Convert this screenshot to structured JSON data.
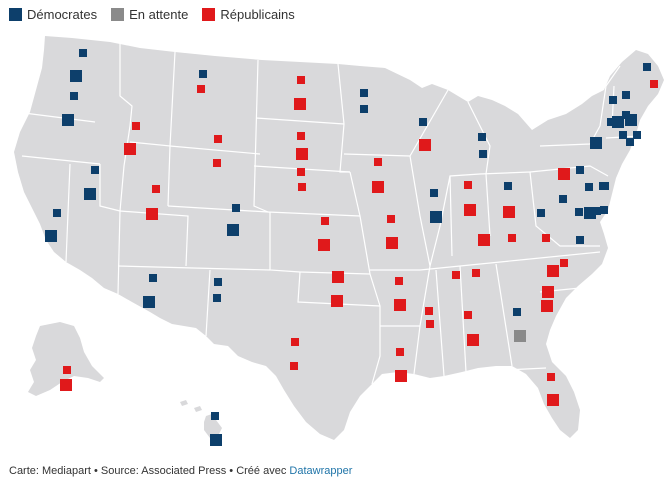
{
  "colors": {
    "democrat": "#0d3f6b",
    "pending": "#8a8a8a",
    "republican": "#e0191b",
    "land": "#d9d9db",
    "border": "#ffffff"
  },
  "legend": [
    {
      "label": "Démocrates",
      "party": "democrat"
    },
    {
      "label": "En attente",
      "party": "pending"
    },
    {
      "label": "Républicains",
      "party": "republican"
    }
  ],
  "footer": {
    "credit": "Carte: Mediapart • Source: Associated Press • Créé avec",
    "link_text": "Datawrapper"
  },
  "map_data": {
    "type": "us-senate-seats",
    "states": [
      {
        "state": "WA",
        "seats": [
          "democrat",
          "democrat"
        ]
      },
      {
        "state": "OR",
        "seats": [
          "democrat",
          "democrat"
        ]
      },
      {
        "state": "CA",
        "seats": [
          "democrat",
          "democrat"
        ]
      },
      {
        "state": "NV",
        "seats": [
          "democrat",
          "democrat"
        ]
      },
      {
        "state": "ID",
        "seats": [
          "republican",
          "republican"
        ]
      },
      {
        "state": "MT",
        "seats": [
          "democrat",
          "republican"
        ]
      },
      {
        "state": "WY",
        "seats": [
          "republican",
          "republican"
        ]
      },
      {
        "state": "UT",
        "seats": [
          "republican",
          "republican"
        ]
      },
      {
        "state": "AZ",
        "seats": [
          "democrat",
          "democrat"
        ]
      },
      {
        "state": "CO",
        "seats": [
          "democrat",
          "democrat"
        ]
      },
      {
        "state": "NM",
        "seats": [
          "democrat",
          "democrat"
        ]
      },
      {
        "state": "ND",
        "seats": [
          "republican",
          "republican"
        ]
      },
      {
        "state": "SD",
        "seats": [
          "republican",
          "republican"
        ]
      },
      {
        "state": "NE",
        "seats": [
          "republican",
          "republican"
        ]
      },
      {
        "state": "KS",
        "seats": [
          "republican",
          "republican"
        ]
      },
      {
        "state": "OK",
        "seats": [
          "republican",
          "republican"
        ]
      },
      {
        "state": "TX",
        "seats": [
          "republican",
          "republican"
        ]
      },
      {
        "state": "MN",
        "seats": [
          "democrat",
          "democrat"
        ]
      },
      {
        "state": "IA",
        "seats": [
          "republican",
          "republican"
        ]
      },
      {
        "state": "MO",
        "seats": [
          "republican",
          "republican"
        ]
      },
      {
        "state": "AR",
        "seats": [
          "republican",
          "republican"
        ]
      },
      {
        "state": "LA",
        "seats": [
          "republican",
          "republican"
        ]
      },
      {
        "state": "WI",
        "seats": [
          "democrat",
          "republican"
        ]
      },
      {
        "state": "IL",
        "seats": [
          "democrat",
          "democrat"
        ]
      },
      {
        "state": "MI",
        "seats": [
          "democrat",
          "democrat"
        ]
      },
      {
        "state": "IN",
        "seats": [
          "republican",
          "republican"
        ]
      },
      {
        "state": "OH",
        "seats": [
          "democrat",
          "republican"
        ]
      },
      {
        "state": "KY",
        "seats": [
          "republican",
          "republican"
        ]
      },
      {
        "state": "TN",
        "seats": [
          "republican",
          "republican"
        ]
      },
      {
        "state": "MS",
        "seats": [
          "republican",
          "republican"
        ]
      },
      {
        "state": "AL",
        "seats": [
          "republican",
          "republican"
        ]
      },
      {
        "state": "GA",
        "seats": [
          "democrat",
          "pending"
        ]
      },
      {
        "state": "FL",
        "seats": [
          "republican",
          "republican"
        ]
      },
      {
        "state": "SC",
        "seats": [
          "republican",
          "republican"
        ]
      },
      {
        "state": "NC",
        "seats": [
          "republican",
          "republican"
        ]
      },
      {
        "state": "VA",
        "seats": [
          "democrat",
          "democrat"
        ]
      },
      {
        "state": "WV",
        "seats": [
          "democrat",
          "republican"
        ]
      },
      {
        "state": "PA",
        "seats": [
          "democrat",
          "republican"
        ]
      },
      {
        "state": "NY",
        "seats": [
          "democrat",
          "democrat"
        ]
      },
      {
        "state": "VT",
        "seats": [
          "democrat",
          "democrat"
        ]
      },
      {
        "state": "NH",
        "seats": [
          "democrat",
          "democrat"
        ]
      },
      {
        "state": "ME",
        "seats": [
          "democrat",
          "republican"
        ]
      },
      {
        "state": "MA",
        "seats": [
          "democrat",
          "democrat"
        ]
      },
      {
        "state": "RI",
        "seats": [
          "democrat",
          "democrat"
        ]
      },
      {
        "state": "CT",
        "seats": [
          "democrat",
          "democrat"
        ]
      },
      {
        "state": "NJ",
        "seats": [
          "democrat",
          "democrat"
        ]
      },
      {
        "state": "DE",
        "seats": [
          "democrat",
          "democrat"
        ]
      },
      {
        "state": "MD",
        "seats": [
          "democrat",
          "democrat"
        ]
      },
      {
        "state": "AK",
        "seats": [
          "republican",
          "republican"
        ]
      },
      {
        "state": "HI",
        "seats": [
          "democrat",
          "democrat"
        ]
      }
    ]
  }
}
